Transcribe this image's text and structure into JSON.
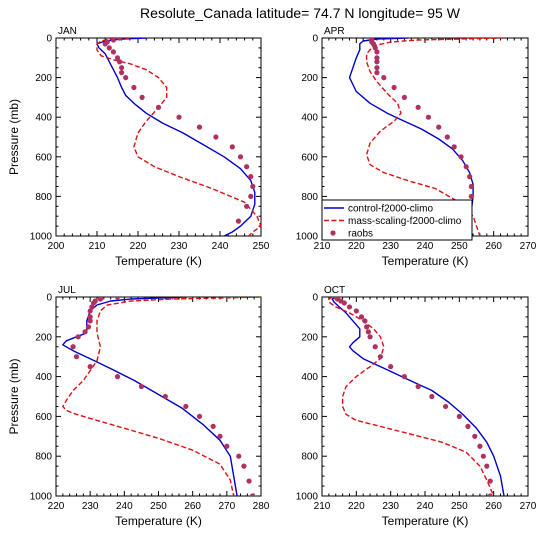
{
  "figure": {
    "title": "Resolute_Canada  latitude= 74.7 N longitude= 95 W"
  },
  "legend": {
    "entries": [
      {
        "name": "control-f2000-climo",
        "color": "#0000cc",
        "style": "solid"
      },
      {
        "name": "mass-scaling-f2000-climo",
        "color": "#dd1111",
        "style": "dashed"
      },
      {
        "name": "raobs",
        "color": "#b03060",
        "style": "markers"
      }
    ]
  },
  "chart_data": [
    {
      "type": "line",
      "panel_label": "JAN",
      "xlabel": "Temperature (K)",
      "ylabel": "Pressure (mb)",
      "xlim": [
        200,
        250
      ],
      "ylim": [
        1000,
        0
      ],
      "xticks": [
        200,
        210,
        220,
        230,
        240,
        250
      ],
      "yticks": [
        0,
        200,
        400,
        600,
        800,
        1000
      ],
      "series": [
        {
          "name": "control-f2000-climo",
          "color": "#0000cc",
          "style": "solid",
          "x": [
            222,
            216,
            212,
            210,
            210.5,
            212,
            213,
            214,
            215,
            216,
            217,
            219,
            222,
            226,
            231,
            236,
            241,
            245,
            247.5,
            248.5,
            248.5,
            247.5,
            245,
            243,
            241
          ],
          "y": [
            0,
            5,
            15,
            30,
            50,
            80,
            120,
            160,
            200,
            250,
            290,
            330,
            380,
            430,
            480,
            540,
            600,
            660,
            720,
            780,
            840,
            900,
            950,
            980,
            1000
          ]
        },
        {
          "name": "mass-scaling-f2000-climo",
          "color": "#dd1111",
          "style": "dashed",
          "x": [
            218,
            213,
            211,
            210,
            210,
            211,
            214,
            218,
            222,
            225,
            227,
            227,
            225,
            222,
            220,
            219,
            220,
            224,
            230,
            238,
            246,
            249,
            250,
            248,
            247
          ],
          "y": [
            0,
            5,
            15,
            30,
            60,
            90,
            110,
            130,
            160,
            200,
            250,
            300,
            350,
            420,
            480,
            550,
            600,
            650,
            700,
            760,
            830,
            900,
            950,
            980,
            1000
          ]
        },
        {
          "name": "raobs",
          "color": "#b03060",
          "style": "markers",
          "x": [
            215.5,
            214,
            212.5,
            212,
            213,
            214,
            215,
            215.5,
            216,
            216,
            217,
            219,
            221,
            225,
            230,
            235,
            239,
            243,
            245,
            246.5,
            247.5,
            248,
            247.5,
            246.5,
            244.5
          ],
          "y": [
            0,
            10,
            20,
            30,
            50,
            70,
            100,
            120,
            150,
            175,
            200,
            250,
            300,
            350,
            400,
            450,
            500,
            550,
            600,
            650,
            700,
            750,
            800,
            850,
            925
          ]
        }
      ]
    },
    {
      "type": "line",
      "panel_label": "APR",
      "xlabel": "Temperature (K)",
      "ylabel": "",
      "xlim": [
        210,
        270
      ],
      "ylim": [
        1000,
        0
      ],
      "xticks": [
        210,
        220,
        230,
        240,
        250,
        260,
        270
      ],
      "yticks": [
        0,
        200,
        400,
        600,
        800,
        1000
      ],
      "series": [
        {
          "name": "control-f2000-climo",
          "color": "#0000cc",
          "style": "solid",
          "x": [
            235,
            226,
            222,
            221,
            221,
            220,
            219,
            218,
            220,
            224,
            229,
            234,
            239,
            244,
            248,
            251,
            253,
            254,
            254,
            253.5,
            253,
            252
          ],
          "y": [
            0,
            5,
            15,
            30,
            60,
            100,
            150,
            200,
            270,
            330,
            380,
            420,
            460,
            510,
            560,
            620,
            680,
            740,
            800,
            870,
            940,
            1000
          ]
        },
        {
          "name": "mass-scaling-f2000-climo",
          "color": "#dd1111",
          "style": "dashed",
          "x": [
            263,
            250,
            238,
            230,
            225,
            223,
            223,
            224,
            226,
            229,
            232,
            233,
            231,
            227,
            224,
            223,
            224,
            228,
            235,
            243,
            250,
            254,
            256
          ],
          "y": [
            0,
            5,
            10,
            20,
            40,
            80,
            120,
            170,
            220,
            280,
            330,
            380,
            420,
            470,
            530,
            590,
            640,
            680,
            720,
            760,
            830,
            900,
            1000
          ]
        },
        {
          "name": "raobs",
          "color": "#b03060",
          "style": "markers",
          "x": [
            224.5,
            224.5,
            224.5,
            225,
            225.5,
            226,
            226,
            226,
            226,
            226,
            228,
            231,
            234,
            238,
            241,
            244,
            246.5,
            248.5,
            250.5,
            252,
            253,
            253.5,
            253.5,
            253
          ],
          "y": [
            0,
            10,
            20,
            30,
            50,
            70,
            100,
            120,
            150,
            175,
            200,
            250,
            300,
            350,
            400,
            450,
            500,
            550,
            600,
            650,
            700,
            750,
            800,
            925
          ]
        }
      ]
    },
    {
      "type": "line",
      "panel_label": "JUL",
      "xlabel": "Temperature (K)",
      "ylabel": "Pressure (mb)",
      "xlim": [
        220,
        280
      ],
      "ylim": [
        1000,
        0
      ],
      "xticks": [
        220,
        230,
        240,
        250,
        260,
        270,
        280
      ],
      "yticks": [
        0,
        200,
        400,
        600,
        800,
        1000
      ],
      "series": [
        {
          "name": "control-f2000-climo",
          "color": "#0000cc",
          "style": "solid",
          "x": [
            258,
            250,
            242,
            236,
            232,
            230,
            229,
            229,
            226,
            223,
            222,
            225,
            230,
            236,
            243,
            250,
            257,
            263,
            268,
            271,
            272,
            273
          ],
          "y": [
            0,
            5,
            10,
            20,
            40,
            70,
            120,
            180,
            200,
            220,
            240,
            270,
            310,
            360,
            420,
            490,
            560,
            640,
            720,
            800,
            900,
            1000
          ]
        },
        {
          "name": "mass-scaling-f2000-climo",
          "color": "#dd1111",
          "style": "dashed",
          "x": [
            280,
            268,
            254,
            242,
            235,
            233,
            232,
            232,
            233,
            232,
            230,
            228,
            225,
            223,
            222,
            223,
            226,
            232,
            240,
            250,
            260,
            268,
            271,
            272
          ],
          "y": [
            0,
            5,
            10,
            20,
            40,
            70,
            120,
            180,
            250,
            320,
            370,
            420,
            470,
            520,
            550,
            570,
            590,
            620,
            660,
            710,
            770,
            840,
            920,
            1000
          ]
        },
        {
          "name": "raobs",
          "color": "#b03060",
          "style": "markers",
          "x": [
            238,
            233,
            231.5,
            231,
            230.5,
            230,
            230,
            230,
            229.5,
            228.5,
            226.5,
            225,
            226,
            230,
            238,
            245,
            252,
            258,
            262,
            266,
            268,
            270,
            273.5,
            275,
            276.5,
            277.5
          ],
          "y": [
            0,
            10,
            20,
            30,
            50,
            70,
            100,
            120,
            150,
            175,
            200,
            250,
            300,
            350,
            400,
            450,
            500,
            550,
            600,
            650,
            700,
            750,
            800,
            850,
            925,
            1000
          ]
        }
      ]
    },
    {
      "type": "line",
      "panel_label": "OCT",
      "xlabel": "Temperature (K)",
      "ylabel": "",
      "xlim": [
        210,
        270
      ],
      "ylim": [
        1000,
        0
      ],
      "xticks": [
        210,
        220,
        230,
        240,
        250,
        260,
        270
      ],
      "yticks": [
        0,
        200,
        400,
        600,
        800,
        1000
      ],
      "series": [
        {
          "name": "control-f2000-climo",
          "color": "#0000cc",
          "style": "solid",
          "x": [
            214,
            213,
            213.5,
            215,
            217,
            219,
            221,
            221,
            219,
            218,
            219,
            222,
            227,
            232,
            237,
            242,
            247,
            251,
            255,
            258,
            260,
            262,
            263
          ],
          "y": [
            0,
            10,
            25,
            50,
            80,
            120,
            160,
            200,
            230,
            250,
            270,
            310,
            350,
            390,
            430,
            470,
            530,
            590,
            660,
            730,
            800,
            900,
            1000
          ]
        },
        {
          "name": "mass-scaling-f2000-climo",
          "color": "#dd1111",
          "style": "dashed",
          "x": [
            213,
            212,
            212,
            214,
            218,
            222,
            225,
            227,
            228,
            227,
            224,
            220,
            217,
            216,
            216,
            217,
            220,
            227,
            236,
            245,
            252,
            256,
            258,
            260
          ],
          "y": [
            0,
            10,
            25,
            50,
            80,
            120,
            160,
            200,
            250,
            310,
            350,
            400,
            450,
            500,
            550,
            590,
            620,
            650,
            690,
            730,
            780,
            850,
            920,
            1000
          ]
        },
        {
          "name": "raobs",
          "color": "#b03060",
          "style": "markers",
          "x": [
            214,
            214.5,
            215.5,
            216.5,
            218,
            220,
            221.5,
            222.5,
            223,
            223.5,
            224,
            225.5,
            227,
            230,
            234,
            238,
            242,
            246,
            250,
            252.5,
            254.5,
            256,
            257,
            258,
            259,
            259
          ],
          "y": [
            0,
            10,
            20,
            30,
            50,
            70,
            100,
            120,
            150,
            175,
            200,
            250,
            300,
            350,
            400,
            450,
            500,
            550,
            600,
            650,
            700,
            750,
            800,
            850,
            925,
            1000
          ]
        }
      ]
    }
  ]
}
